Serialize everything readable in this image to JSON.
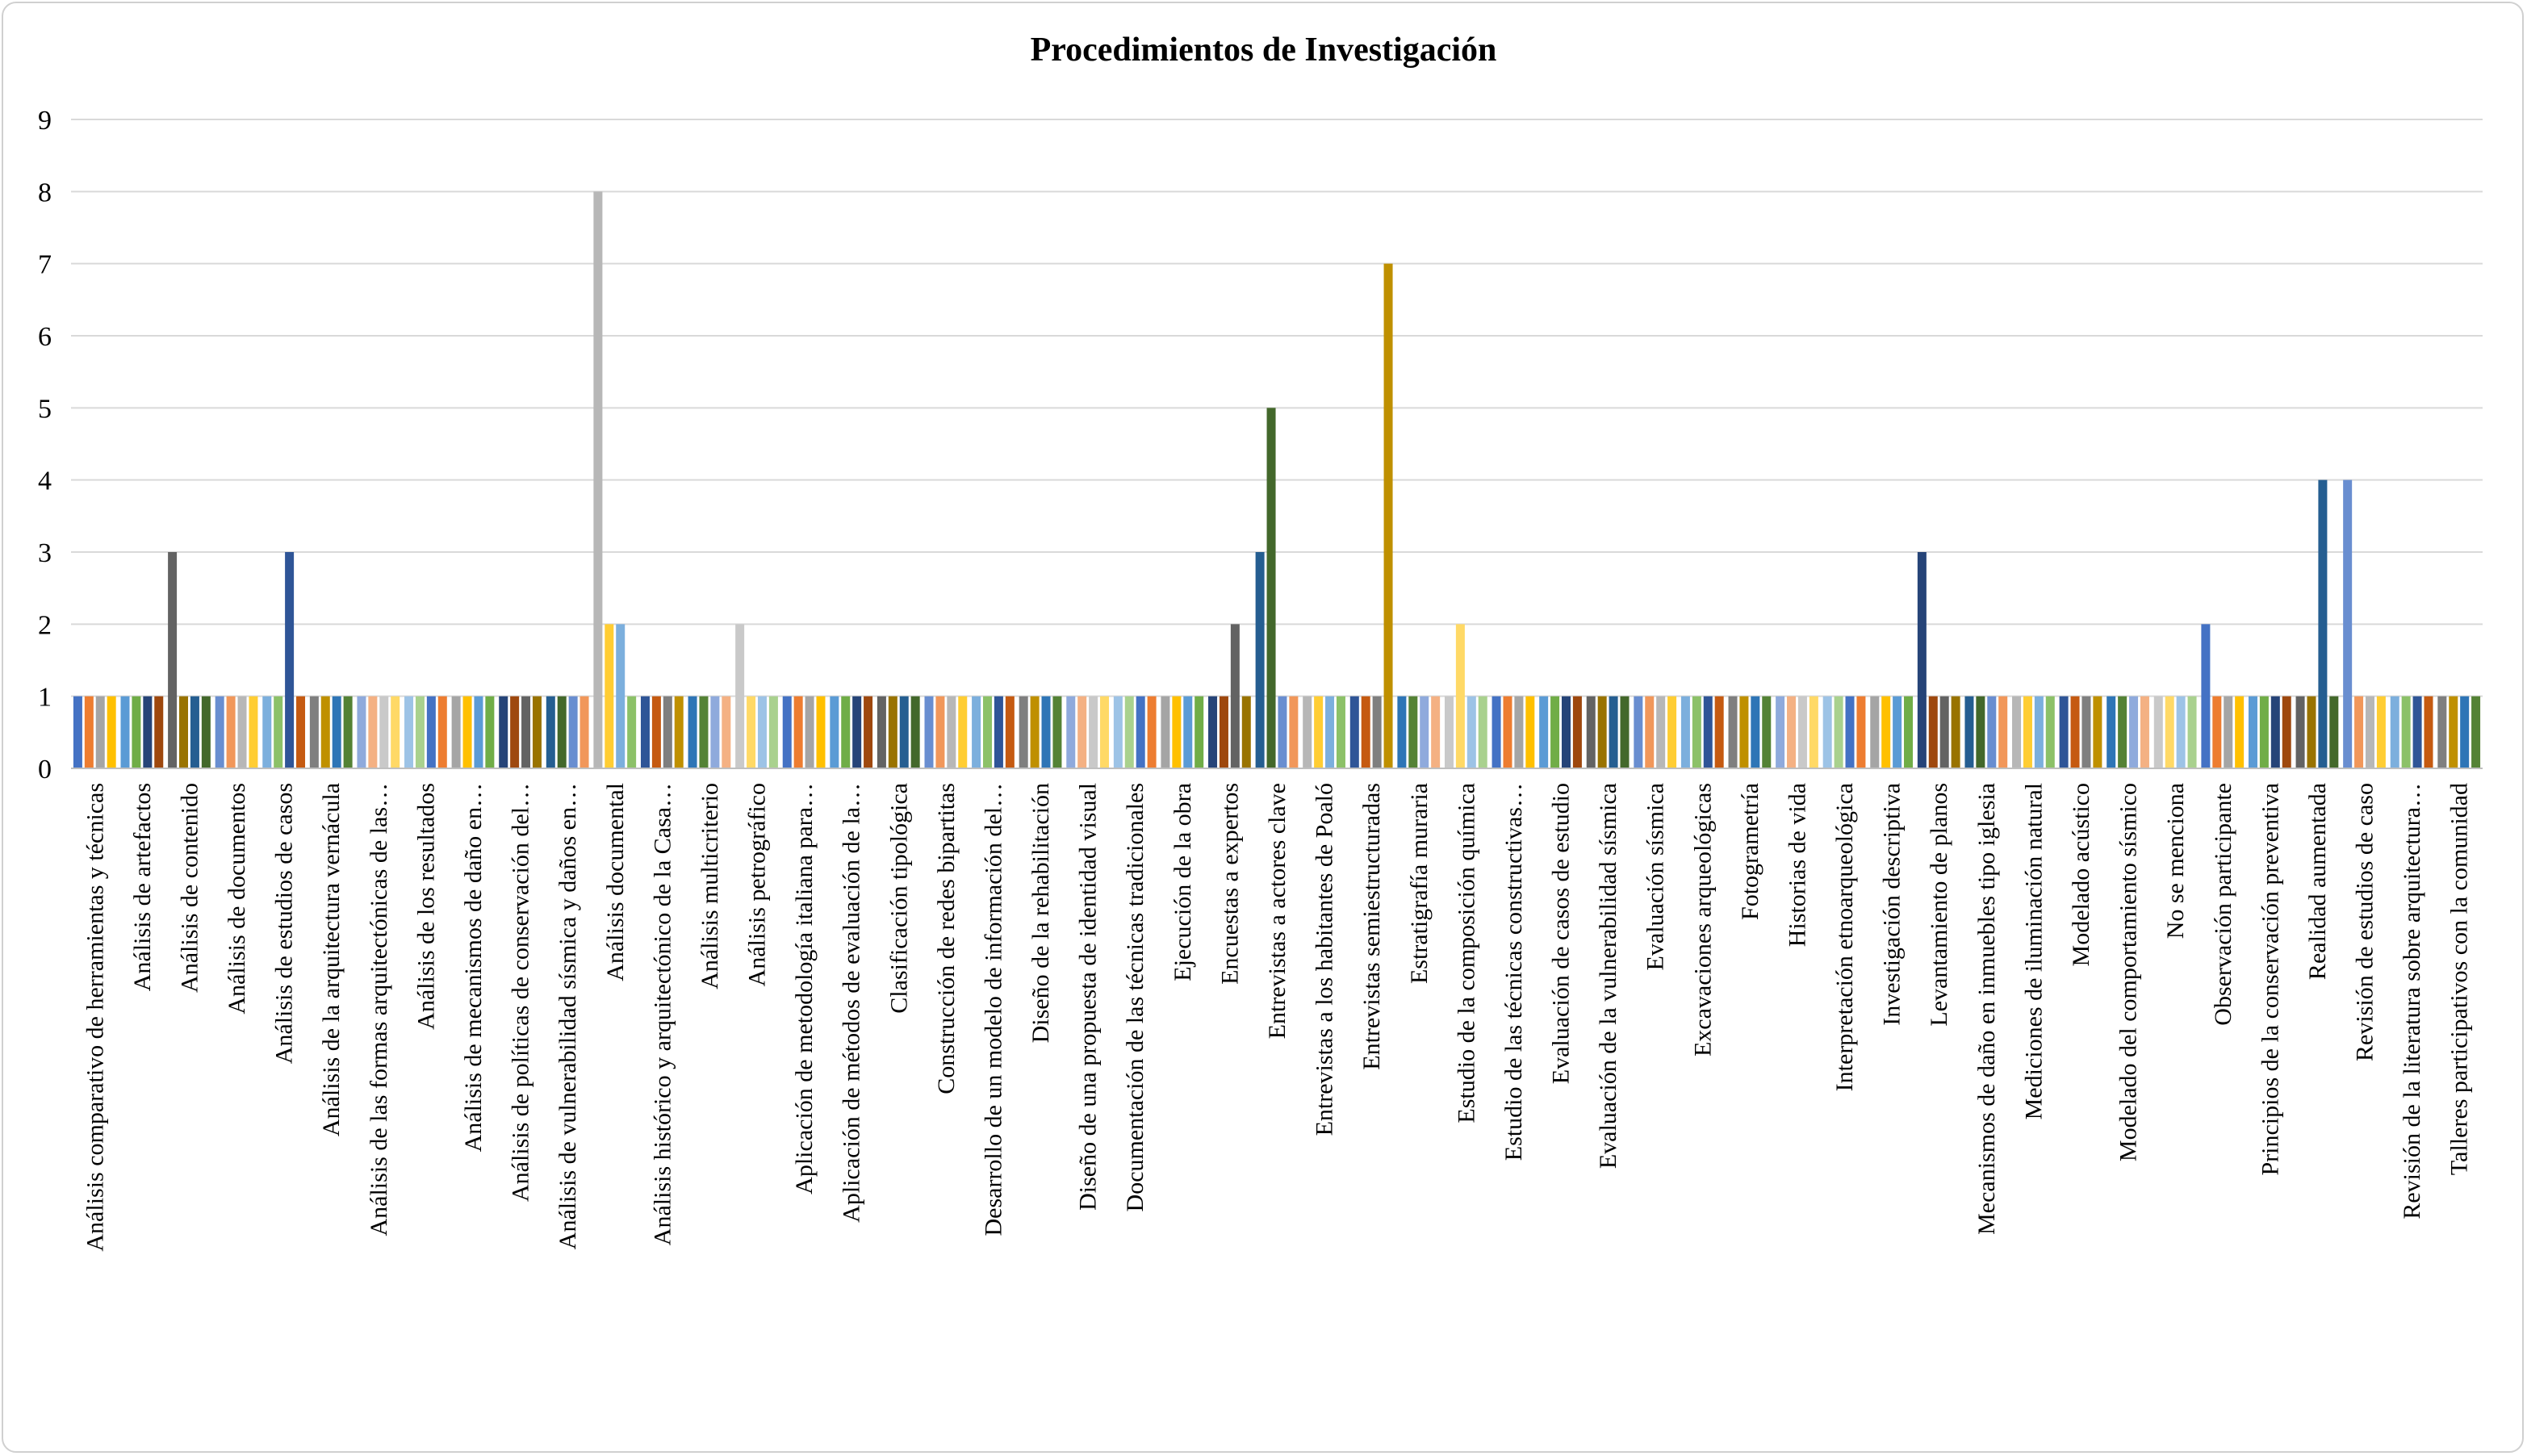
{
  "chart_data": {
    "type": "bar",
    "title": "Procedimientos de Investigación",
    "xlabel": "",
    "ylabel": "",
    "ylim": [
      0,
      9
    ],
    "yticks": [
      "0",
      "1",
      "2",
      "3",
      "4",
      "5",
      "6",
      "7",
      "8",
      "9"
    ],
    "grid": true,
    "legend": "none",
    "palette": [
      "#4472c4",
      "#ed7d31",
      "#a5a5a5",
      "#ffc000",
      "#5b9bd5",
      "#70ad47",
      "#264478",
      "#9e480e",
      "#636363",
      "#997300",
      "#255e91",
      "#43682b",
      "#698ed0",
      "#f1975a",
      "#b7b7b7",
      "#ffcd33",
      "#7cafdd",
      "#8cc168",
      "#2f5597",
      "#c55a11",
      "#7f7f7f",
      "#bf9000",
      "#2e75b6",
      "#548235",
      "#8faadc",
      "#f4b183",
      "#c9c9c9",
      "#ffd966",
      "#9dc3e6",
      "#a9d18e"
    ],
    "categories": [
      {
        "label": "Análisis comparativo de herramientas y técnicas",
        "values": [
          1,
          1,
          1,
          1
        ]
      },
      {
        "label": "Análisis de artefactos",
        "values": [
          1,
          1,
          1,
          1
        ]
      },
      {
        "label": "Análisis de contenido",
        "values": [
          3,
          1,
          1,
          1
        ]
      },
      {
        "label": "Análisis de documentos",
        "values": [
          1,
          1,
          1,
          1
        ]
      },
      {
        "label": "Análisis de estudios de casos",
        "values": [
          1,
          1,
          3,
          1
        ]
      },
      {
        "label": "Análisis de la arquitectura vernácula",
        "values": [
          1,
          1,
          1,
          1
        ]
      },
      {
        "label": "Análisis de las formas arquitectónicas de las…",
        "values": [
          1,
          1,
          1,
          1
        ]
      },
      {
        "label": "Análisis de los resultados",
        "values": [
          1,
          1,
          1,
          1
        ]
      },
      {
        "label": "Análisis de mecanismos de daño en…",
        "values": [
          1,
          1,
          1,
          1
        ]
      },
      {
        "label": "Análisis de políticas de conservación del…",
        "values": [
          1,
          1,
          1,
          1
        ]
      },
      {
        "label": "Análisis de vulnerabilidad sísmica y daños en…",
        "values": [
          1,
          1,
          1,
          1
        ]
      },
      {
        "label": "Análisis documental",
        "values": [
          8,
          2,
          2,
          1
        ]
      },
      {
        "label": "Análisis histórico y arquitectónico de la Casa…",
        "values": [
          1,
          1,
          1,
          1
        ]
      },
      {
        "label": "Análisis multicriterio",
        "values": [
          1,
          1,
          1,
          1
        ]
      },
      {
        "label": "Análisis petrográfico",
        "values": [
          2,
          1,
          1,
          1
        ]
      },
      {
        "label": "Aplicación de metodología italiana para…",
        "values": [
          1,
          1,
          1,
          1
        ]
      },
      {
        "label": "Aplicación de métodos de evaluación de la…",
        "values": [
          1,
          1,
          1,
          1
        ]
      },
      {
        "label": "Clasificación tipológica",
        "values": [
          1,
          1,
          1,
          1
        ]
      },
      {
        "label": "Construcción de redes bipartitas",
        "values": [
          1,
          1,
          1,
          1
        ]
      },
      {
        "label": "Desarrollo de un modelo de información del…",
        "values": [
          1,
          1,
          1,
          1
        ]
      },
      {
        "label": "Diseño de la rehabilitación",
        "values": [
          1,
          1,
          1,
          1
        ]
      },
      {
        "label": "Diseño de una propuesta de identidad visual",
        "values": [
          1,
          1,
          1,
          1
        ]
      },
      {
        "label": "Documentación de las técnicas tradicionales",
        "values": [
          1,
          1,
          1,
          1
        ]
      },
      {
        "label": "Ejecución de la obra",
        "values": [
          1,
          1,
          1,
          1
        ]
      },
      {
        "label": "Encuestas a expertos",
        "values": [
          1,
          1,
          2,
          1
        ]
      },
      {
        "label": "Entrevistas a actores clave",
        "values": [
          3,
          5,
          1,
          1
        ]
      },
      {
        "label": "Entrevistas a los habitantes de Poaló",
        "values": [
          1,
          1,
          1,
          1
        ]
      },
      {
        "label": "Entrevistas semiestructuradas",
        "values": [
          1,
          1,
          1,
          7
        ]
      },
      {
        "label": "Estratigrafía muraria",
        "values": [
          1,
          1,
          1,
          1
        ]
      },
      {
        "label": "Estudio de la composición química",
        "values": [
          1,
          2,
          1,
          1
        ]
      },
      {
        "label": "Estudio de las técnicas constructivas…",
        "values": [
          1,
          1,
          1,
          1
        ]
      },
      {
        "label": "Evaluación de casos de estudio",
        "values": [
          1,
          1,
          1,
          1
        ]
      },
      {
        "label": "Evaluación de la vulnerabilidad sísmica",
        "values": [
          1,
          1,
          1,
          1
        ]
      },
      {
        "label": "Evaluación sísmica",
        "values": [
          1,
          1,
          1,
          1
        ]
      },
      {
        "label": "Excavaciones arqueológicas",
        "values": [
          1,
          1,
          1,
          1
        ]
      },
      {
        "label": "Fotogrametría",
        "values": [
          1,
          1,
          1,
          1
        ]
      },
      {
        "label": "Historias de vida",
        "values": [
          1,
          1,
          1,
          1
        ]
      },
      {
        "label": "Interpretación etnoarqueológica",
        "values": [
          1,
          1,
          1,
          1
        ]
      },
      {
        "label": "Investigación descriptiva",
        "values": [
          1,
          1,
          1,
          1
        ]
      },
      {
        "label": "Levantamiento de planos",
        "values": [
          3,
          1,
          1,
          1
        ]
      },
      {
        "label": "Mecanismos de daño en inmuebles tipo iglesia",
        "values": [
          1,
          1,
          1,
          1
        ]
      },
      {
        "label": "Mediciones de iluminación natural",
        "values": [
          1,
          1,
          1,
          1
        ]
      },
      {
        "label": "Modelado acústico",
        "values": [
          1,
          1,
          1,
          1
        ]
      },
      {
        "label": "Modelado del comportamiento sísmico",
        "values": [
          1,
          1,
          1,
          1
        ]
      },
      {
        "label": "No se menciona",
        "values": [
          1,
          1,
          1,
          1
        ]
      },
      {
        "label": "Observación participante",
        "values": [
          2,
          1,
          1,
          1
        ]
      },
      {
        "label": "Principios de la conservación preventiva",
        "values": [
          1,
          1,
          1,
          1
        ]
      },
      {
        "label": "Realidad aumentada",
        "values": [
          1,
          1,
          4,
          1
        ]
      },
      {
        "label": "Revisión de estudios de caso",
        "values": [
          4,
          1,
          1,
          1
        ]
      },
      {
        "label": "Revisión de la literatura sobre arquitectura…",
        "values": [
          1,
          1,
          1,
          1
        ]
      },
      {
        "label": "Talleres participativos con la comunidad",
        "values": [
          1,
          1,
          1,
          1
        ]
      }
    ]
  }
}
